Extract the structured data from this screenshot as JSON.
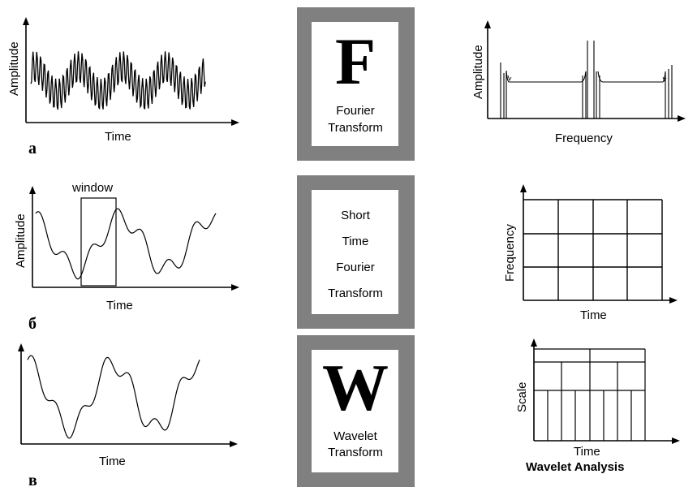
{
  "row_a": {
    "panel_letter": "а",
    "signal_ylabel": "Amplitude",
    "signal_xlabel": "Time",
    "box_letter": "F",
    "box_line1": "Fourier",
    "box_line2": "Transform",
    "result_ylabel": "Amplitude",
    "result_xlabel": "Frequency"
  },
  "row_b": {
    "panel_letter": "б",
    "signal_ylabel": "Amplitude",
    "signal_xlabel": "Time",
    "window_label": "window",
    "box_line1": "Short",
    "box_line2": "Time",
    "box_line3": "Fourier",
    "box_line4": "Transform",
    "result_ylabel": "Frequency",
    "result_xlabel": "Time"
  },
  "row_c": {
    "panel_letter": "в",
    "signal_xlabel": "Time",
    "box_letter": "W",
    "box_line1": "Wavelet",
    "box_line2": "Transform",
    "result_ylabel": "Scale",
    "result_xlabel": "Time",
    "result_caption": "Wavelet Analysis"
  },
  "colors": {
    "frame": "#808080",
    "ink": "#000000",
    "paper": "#ffffff"
  }
}
